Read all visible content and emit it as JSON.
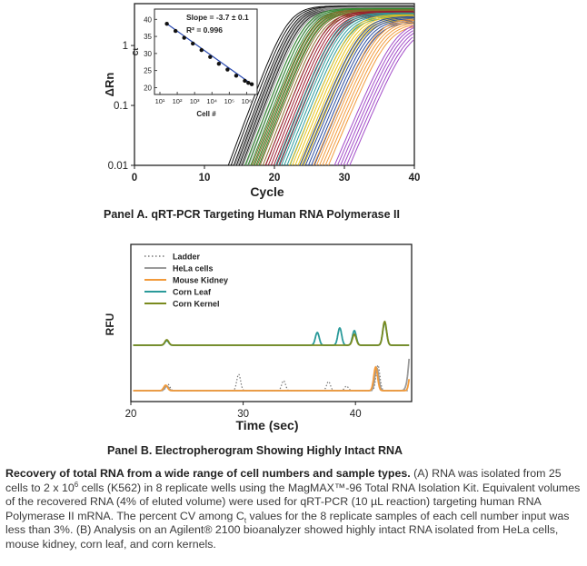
{
  "panel_a": {
    "title": "Panel A. qRT-PCR Targeting Human RNA Polymerase II",
    "xlabel": "Cycle",
    "ylabel": "ΔRn",
    "x_ticks": [
      "0",
      "10",
      "20",
      "30",
      "40"
    ],
    "y_ticks": [
      "1",
      "0.1",
      "0.01"
    ],
    "inset": {
      "slope_text": "Slope = -3.7 ± 0.1",
      "r2_text": "R² = 0.996",
      "ylabel": "Ct",
      "xlabel": "Cell #",
      "y_ticks": [
        "40",
        "35",
        "30",
        "25",
        "20"
      ],
      "x_ticks": [
        "10¹",
        "10²",
        "10³",
        "10⁴",
        "10⁵",
        "10⁶"
      ]
    }
  },
  "panel_b": {
    "title": "Panel B. Electropherogram Showing Highly Intact RNA",
    "xlabel": "Time (sec)",
    "ylabel": "RFU",
    "x_ticks": [
      "20",
      "30",
      "40"
    ],
    "legend": [
      {
        "label": "Ladder",
        "color": "#777777",
        "style": "dotted"
      },
      {
        "label": "HeLa cells",
        "color": "#9a9a9a",
        "style": "solid"
      },
      {
        "label": "Mouse Kidney",
        "color": "#f29a3a",
        "style": "solid"
      },
      {
        "label": "Corn Leaf",
        "color": "#2a9a9a",
        "style": "solid"
      },
      {
        "label": "Corn Kernel",
        "color": "#7a8a1e",
        "style": "solid"
      }
    ]
  },
  "caption": {
    "lead": "Recovery of total RNA from a wide range of cell numbers and sample types.",
    "p1": " (A) RNA was isolated from 25 cells to 2 x 10",
    "p1_sup": "6",
    "p2": " cells (K562) in 8 replicate wells using the MagMAX™-96 Total RNA Isolation Kit. Equivalent volumes of the recovered RNA (4% of eluted volume) were used for qRT-PCR (10 µL reaction) targeting human RNA Polymerase II mRNA. The percent CV among C",
    "p2_sub": "t",
    "p3": " values for the 8 replicate samples of each cell number input was less than 3%. (B) Analysis on an Agilent® 2100 bioanalyzer showed highly intact RNA isolated from HeLa cells, mouse kidney, corn leaf, and corn kernels."
  },
  "chart_data": [
    {
      "type": "line",
      "title": "",
      "xlabel": "Cycle",
      "ylabel": "ΔRn",
      "xlim": [
        0,
        40
      ],
      "ylim": [
        0.01,
        5
      ],
      "yscale": "log",
      "series": [
        {
          "color": "#111111",
          "ct": 17.0
        },
        {
          "color": "#9a9a9a",
          "ct": 18.0
        },
        {
          "color": "#2e8b2e",
          "ct": 19.5
        },
        {
          "color": "#8a6a2a",
          "ct": 20.5
        },
        {
          "color": "#9b1b2e",
          "ct": 22.5
        },
        {
          "color": "#2a9a9a",
          "ct": 24.0
        },
        {
          "color": "#e6c21a",
          "ct": 26.0
        },
        {
          "color": "#2a4a9a",
          "ct": 27.5
        },
        {
          "color": "#f29a3a",
          "ct": 29.5
        },
        {
          "color": "#a24bc8",
          "ct": 32.5
        }
      ]
    },
    {
      "type": "scatter",
      "title": "",
      "xlabel": "Cell #",
      "ylabel": "Ct",
      "xscale": "log",
      "xlim": [
        1,
        6.4
      ],
      "ylim": [
        18,
        43
      ],
      "points": [
        [
          1.4,
          38.7
        ],
        [
          1.9,
          36.6
        ],
        [
          2.4,
          34.6
        ],
        [
          2.9,
          32.9
        ],
        [
          3.4,
          31.0
        ],
        [
          3.9,
          29.0
        ],
        [
          4.4,
          27.0
        ],
        [
          4.9,
          25.3
        ],
        [
          5.4,
          23.5
        ],
        [
          5.9,
          22.0
        ],
        [
          6.1,
          21.4
        ],
        [
          6.3,
          21.0
        ]
      ],
      "fit": {
        "slope": -3.7,
        "r2": 0.996
      }
    },
    {
      "type": "line",
      "title": "",
      "xlabel": "Time (sec)",
      "ylabel": "RFU",
      "xlim": [
        20,
        45
      ],
      "series": [
        {
          "name": "Ladder",
          "color": "#777777",
          "baseline": "lower",
          "peaks": [
            [
              23.3,
              0.35
            ],
            [
              29.6,
              0.9
            ],
            [
              33.6,
              0.55
            ],
            [
              37.6,
              0.5
            ],
            [
              42.0,
              1.4
            ],
            [
              45.5,
              0.45
            ],
            [
              39.2,
              0.25
            ]
          ]
        },
        {
          "name": "HeLa cells",
          "color": "#9a9a9a",
          "baseline": "lower",
          "peaks": [
            [
              23.2,
              0.25
            ],
            [
              41.9,
              1.25
            ],
            [
              45.2,
              4.9
            ]
          ]
        },
        {
          "name": "Mouse Kidney",
          "color": "#f29a3a",
          "baseline": "lower",
          "peaks": [
            [
              23.1,
              0.3
            ],
            [
              41.8,
              1.3
            ],
            [
              45.0,
              1.6
            ]
          ]
        },
        {
          "name": "Corn Leaf",
          "color": "#2a9a9a",
          "baseline": "upper",
          "peaks": [
            [
              23.2,
              0.25
            ],
            [
              36.6,
              0.7
            ],
            [
              38.6,
              0.95
            ],
            [
              39.9,
              0.8
            ],
            [
              42.6,
              1.25
            ]
          ]
        },
        {
          "name": "Corn Kernel",
          "color": "#7a8a1e",
          "baseline": "upper",
          "peaks": [
            [
              23.2,
              0.3
            ],
            [
              39.9,
              0.6
            ],
            [
              42.6,
              1.3
            ]
          ]
        }
      ]
    }
  ]
}
